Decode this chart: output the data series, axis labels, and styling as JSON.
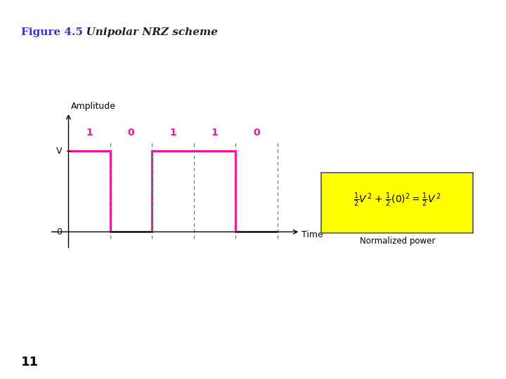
{
  "title_fig": "Figure 4.5",
  "title_scheme": "  Unipolar NRZ scheme",
  "title_color_fig": "#3333cc",
  "title_color_scheme": "#222222",
  "background_color": "#ffffff",
  "top_bar_color": "#cc0000",
  "bottom_bar_color": "#cc0000",
  "signal_color": "#ee1199",
  "signal_linewidth": 2.2,
  "bits": [
    "1",
    "0",
    "1",
    "1",
    "0"
  ],
  "bit_values": [
    1,
    0,
    1,
    1,
    0
  ],
  "xlabel": "Time",
  "ylabel": "Amplitude",
  "V_label": "V",
  "zero_label": "0",
  "formula_box_color": "#ffff00",
  "formula_box_edge": "#555555",
  "page_number": "11",
  "bit_label_color": "#ee1199",
  "dashed_line_color": "#777777",
  "formula_fontsize": 10,
  "normalized_label": "Normalized power",
  "title_fontsize": 11,
  "signal_fontsize": 9,
  "bit_fontsize": 10
}
